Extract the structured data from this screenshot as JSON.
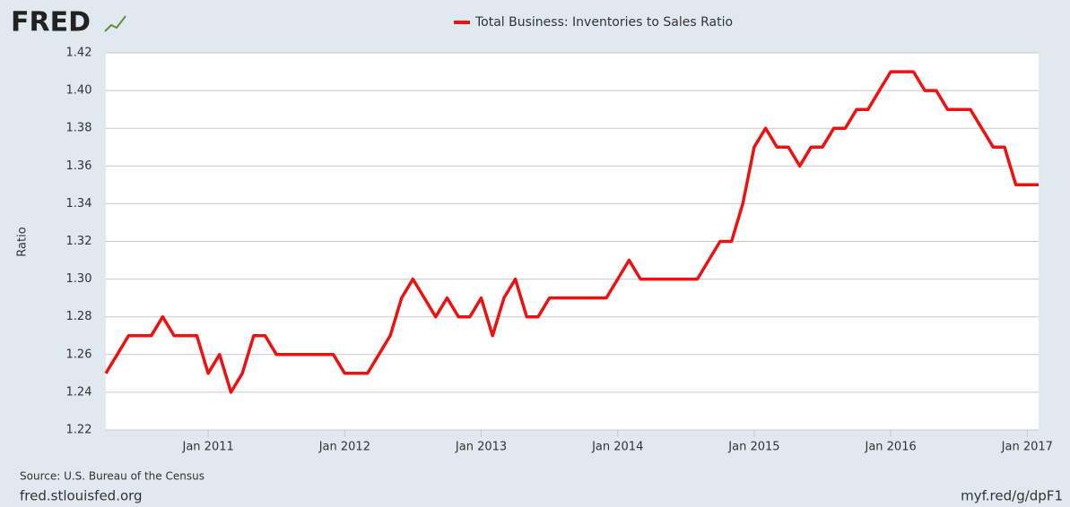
{
  "brand": {
    "logo": "FRED",
    "source": "Source: U.S. Bureau of the Census",
    "site": "fred.stlouisfed.org",
    "short_url": "myf.red/g/dpF1"
  },
  "chart_data": {
    "type": "line",
    "ylabel": "Ratio",
    "x": [
      "2010-04",
      "2010-05",
      "2010-06",
      "2010-07",
      "2010-08",
      "2010-09",
      "2010-10",
      "2010-11",
      "2010-12",
      "2011-01",
      "2011-02",
      "2011-03",
      "2011-04",
      "2011-05",
      "2011-06",
      "2011-07",
      "2011-08",
      "2011-09",
      "2011-10",
      "2011-11",
      "2011-12",
      "2012-01",
      "2012-02",
      "2012-03",
      "2012-04",
      "2012-05",
      "2012-06",
      "2012-07",
      "2012-08",
      "2012-09",
      "2012-10",
      "2012-11",
      "2012-12",
      "2013-01",
      "2013-02",
      "2013-03",
      "2013-04",
      "2013-05",
      "2013-06",
      "2013-07",
      "2013-08",
      "2013-09",
      "2013-10",
      "2013-11",
      "2013-12",
      "2014-01",
      "2014-02",
      "2014-03",
      "2014-04",
      "2014-05",
      "2014-06",
      "2014-07",
      "2014-08",
      "2014-09",
      "2014-10",
      "2014-11",
      "2014-12",
      "2015-01",
      "2015-02",
      "2015-03",
      "2015-04",
      "2015-05",
      "2015-06",
      "2015-07",
      "2015-08",
      "2015-09",
      "2015-10",
      "2015-11",
      "2015-12",
      "2016-01",
      "2016-02",
      "2016-03",
      "2016-04",
      "2016-05",
      "2016-06",
      "2016-07",
      "2016-08",
      "2016-09",
      "2016-10",
      "2016-11",
      "2016-12",
      "2017-01",
      "2017-02"
    ],
    "series": [
      {
        "name": "Total Business: Inventories to Sales Ratio",
        "color": "#ee1111",
        "values": [
          1.25,
          1.26,
          1.27,
          1.27,
          1.27,
          1.28,
          1.27,
          1.27,
          1.27,
          1.25,
          1.26,
          1.24,
          1.25,
          1.27,
          1.27,
          1.26,
          1.26,
          1.26,
          1.26,
          1.26,
          1.26,
          1.25,
          1.25,
          1.25,
          1.26,
          1.27,
          1.29,
          1.3,
          1.29,
          1.28,
          1.29,
          1.28,
          1.28,
          1.29,
          1.27,
          1.29,
          1.3,
          1.28,
          1.28,
          1.29,
          1.29,
          1.29,
          1.29,
          1.29,
          1.29,
          1.3,
          1.31,
          1.3,
          1.3,
          1.3,
          1.3,
          1.3,
          1.3,
          1.31,
          1.32,
          1.32,
          1.34,
          1.37,
          1.38,
          1.37,
          1.37,
          1.36,
          1.37,
          1.37,
          1.38,
          1.38,
          1.39,
          1.39,
          1.4,
          1.41,
          1.41,
          1.41,
          1.4,
          1.4,
          1.39,
          1.39,
          1.39,
          1.38,
          1.37,
          1.37,
          1.35,
          1.35,
          1.35
        ]
      }
    ],
    "xlim": [
      "2010-04",
      "2017-02"
    ],
    "xticks": [
      {
        "value": "2011-01",
        "label": "Jan 2011"
      },
      {
        "value": "2012-01",
        "label": "Jan 2012"
      },
      {
        "value": "2013-01",
        "label": "Jan 2013"
      },
      {
        "value": "2014-01",
        "label": "Jan 2014"
      },
      {
        "value": "2015-01",
        "label": "Jan 2015"
      },
      {
        "value": "2016-01",
        "label": "Jan 2016"
      },
      {
        "value": "2017-01",
        "label": "Jan 2017"
      }
    ],
    "ylim": [
      1.22,
      1.42
    ],
    "yticks": [
      {
        "value": 1.22,
        "label": "1.22"
      },
      {
        "value": 1.24,
        "label": "1.24"
      },
      {
        "value": 1.26,
        "label": "1.26"
      },
      {
        "value": 1.28,
        "label": "1.28"
      },
      {
        "value": 1.3,
        "label": "1.30"
      },
      {
        "value": 1.32,
        "label": "1.32"
      },
      {
        "value": 1.34,
        "label": "1.34"
      },
      {
        "value": 1.36,
        "label": "1.36"
      },
      {
        "value": 1.38,
        "label": "1.38"
      },
      {
        "value": 1.4,
        "label": "1.40"
      },
      {
        "value": 1.42,
        "label": "1.42"
      }
    ],
    "grid": true
  }
}
